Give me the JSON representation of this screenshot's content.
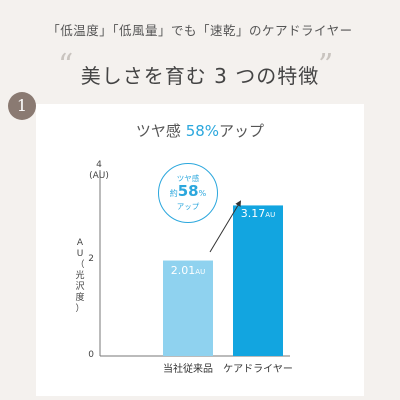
{
  "header": {
    "subtitle": "「低温度」「低風量」でも「速乾」のケアドライヤー",
    "quote_open": "“",
    "quote_close": "”",
    "headline": "美しさを育む 3 つの特徴",
    "badge_number": "1"
  },
  "card": {
    "title_prefix": "ツヤ感 ",
    "title_percent": "58%",
    "title_suffix": "アップ",
    "bubble": {
      "line1": "ツヤ感",
      "prefix": "約",
      "value": "58",
      "unit": "%",
      "line3": "アップ"
    }
  },
  "colors": {
    "accent": "#2ba7dd",
    "bar_conventional": "#8fd2ef",
    "bar_care": "#12a5e0",
    "badge": "#8a7a72"
  },
  "chart_data": {
    "type": "bar",
    "title": "ツヤ感58%アップ",
    "categories": [
      "当社従来品",
      "ケアドライヤー"
    ],
    "values": [
      2.01,
      3.17
    ],
    "value_labels": [
      "2.01",
      "3.17"
    ],
    "value_unit": "AU",
    "ylabel": "AU（光沢度）",
    "y_unit_top": "(AU)",
    "ylim": [
      0,
      4
    ],
    "yticks": [
      "0",
      "2",
      "4"
    ],
    "grid": false,
    "annotation": "約58%アップ"
  }
}
